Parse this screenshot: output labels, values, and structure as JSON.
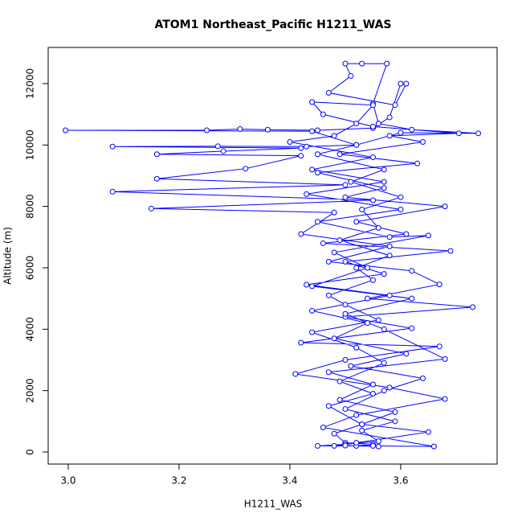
{
  "chart_data": {
    "type": "line",
    "title": "ATOM1 Northeast_Pacific H1211_WAS",
    "xlabel": "H1211_WAS",
    "ylabel": "Altitude (m)",
    "color": "#0000ff",
    "xlim": [
      2.9638,
      3.774
    ],
    "ylim": [
      -393,
      13178
    ],
    "xticks": [
      {
        "value": 3,
        "label": "3.0"
      },
      3.2,
      3.4,
      3.6
    ],
    "yticks": [
      0,
      2000,
      4000,
      6000,
      8000,
      10000,
      12000
    ],
    "x": [
      3.52,
      3.55,
      3.5,
      3.48,
      3.53,
      3.47,
      3.55,
      3.49,
      3.57,
      3.52,
      3.44,
      3.56,
      3.5,
      3.47,
      3.55,
      3.52,
      3.58,
      3.49,
      3.56,
      3.53,
      3.6,
      3.51,
      3.57,
      3.45,
      3.52,
      3.6,
      3.74,
      3.62,
      3.56,
      3.55,
      3.575,
      3.53,
      3.5,
      3.51,
      3.47,
      3.59,
      3.61,
      3.6,
      3.58,
      3.55,
      3.45,
      3.36,
      3.31,
      3.25,
      2.995,
      3.44,
      3.52,
      3.43,
      3.27,
      3.08,
      3.42,
      3.28,
      3.16,
      3.42,
      3.32,
      3.16,
      3.5,
      3.08,
      3.55,
      3.15,
      3.48,
      3.42,
      3.58,
      3.47,
      3.62,
      3.67,
      3.54,
      3.73,
      3.5,
      3.62,
      3.42,
      3.67,
      3.5,
      3.41,
      3.58,
      3.68,
      3.52,
      3.46,
      3.66,
      3.55,
      3.45,
      3.5,
      3.56,
      3.53,
      3.59,
      3.5,
      3.57,
      3.64,
      3.51,
      3.61,
      3.48,
      3.54,
      3.44,
      3.58,
      3.43,
      3.57,
      3.5,
      3.69,
      3.46,
      3.61,
      3.52,
      3.68,
      3.5,
      3.57,
      3.45,
      3.63,
      3.49,
      3.64,
      3.58,
      3.705,
      3.55,
      3.46,
      3.44,
      3.55,
      3.52,
      3.48,
      3.4,
      3.55,
      3.44,
      3.57,
      3.43,
      3.6,
      3.45,
      3.58,
      3.65,
      3.48,
      3.54,
      3.44,
      3.62,
      3.5,
      3.57,
      3.68,
      3.47,
      3.55,
      3.49,
      3.59,
      3.53,
      3.65,
      3.52,
      3.48,
      3.5,
      3.56
    ],
    "values": [
      200,
      250,
      300,
      600,
      900,
      1500,
      1900,
      2300,
      2900,
      3400,
      3900,
      4300,
      4800,
      5100,
      5600,
      6000,
      6400,
      6900,
      7300,
      7900,
      8300,
      8800,
      9200,
      9700,
      10000,
      10400,
      10380,
      10500,
      10700,
      11350,
      12650,
      12650,
      12650,
      12250,
      11700,
      11300,
      12000,
      12000,
      10900,
      10550,
      10480,
      10500,
      10520,
      10480,
      10480,
      10450,
      10000,
      9950,
      9960,
      9950,
      9900,
      9800,
      9700,
      9650,
      9230,
      8900,
      8700,
      8480,
      8200,
      7930,
      7800,
      7100,
      6700,
      6200,
      5900,
      5460,
      5000,
      4720,
      4400,
      4030,
      3560,
      3440,
      3000,
      2540,
      2100,
      1730,
      1200,
      800,
      180,
      200,
      200,
      250,
      350,
      700,
      1000,
      1400,
      2000,
      2400,
      2800,
      3200,
      3700,
      4200,
      4600,
      5100,
      5450,
      5800,
      6200,
      6550,
      6800,
      7100,
      7500,
      8000,
      8300,
      8600,
      9100,
      9400,
      9700,
      10100,
      10300,
      10380,
      10600,
      11000,
      11400,
      11300,
      10700,
      10300,
      10100,
      9600,
      9200,
      8800,
      8400,
      7900,
      7500,
      7000,
      7050,
      6500,
      6000,
      5400,
      5000,
      4500,
      4000,
      3030,
      2600,
      2200,
      1700,
      1300,
      900,
      650,
      300,
      200,
      210,
      180
    ]
  }
}
